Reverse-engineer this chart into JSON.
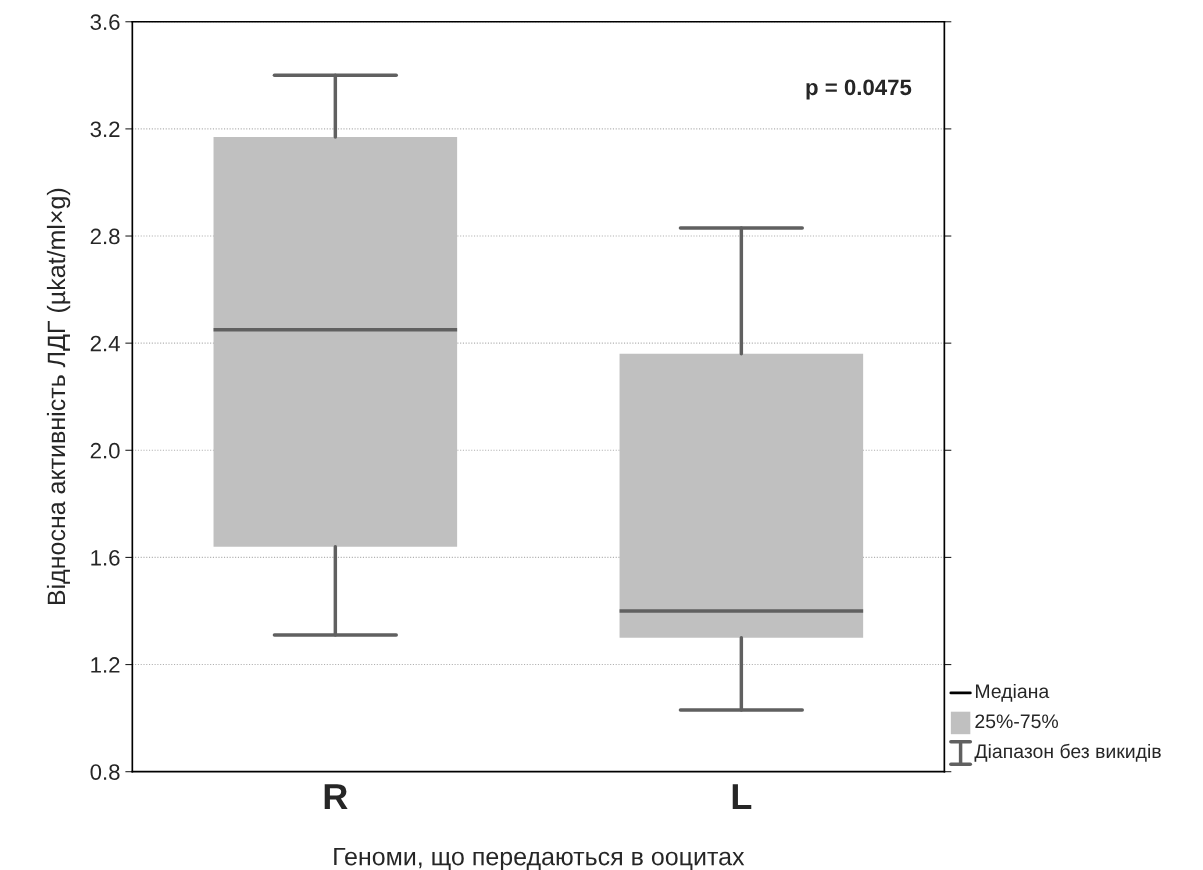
{
  "chart_data": {
    "type": "box",
    "xlabel": "Геноми, що передаються в ооцитах",
    "ylabel": "Відносна активність ЛДГ (µkat/ml×g)",
    "categories": [
      "R",
      "L"
    ],
    "boxes": [
      {
        "low": 1.31,
        "q1": 1.64,
        "median": 2.45,
        "q3": 3.17,
        "high": 3.4
      },
      {
        "low": 1.03,
        "q1": 1.3,
        "median": 1.4,
        "q3": 2.36,
        "high": 2.83
      }
    ],
    "color": "#c0c0c0",
    "ylim": [
      0.8,
      3.6
    ],
    "yticks": [
      0.8,
      1.2,
      1.6,
      {
        "value": 2,
        "label": "2.0"
      },
      2.4,
      2.8,
      3.2,
      3.6
    ],
    "grid": "y",
    "annotations": [
      "p = 0.0475",
      "Медіана",
      "25%-75%",
      "Діапазон без викидів"
    ]
  }
}
